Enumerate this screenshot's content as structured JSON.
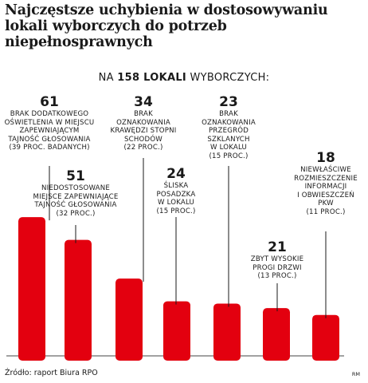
{
  "title": "Najczęstsze uchybienia w dostosowywaniu lokali wyborczych do potrzeb niepełnosprawnych",
  "subtitle": {
    "prefix": "NA",
    "count": "158 LOKALI",
    "suffix": "WYBORCZYCH:"
  },
  "source": "Źródło: raport Biura RPO",
  "credit": "RM",
  "colors": {
    "bar": "#e3000f",
    "text": "#1a1a1a",
    "axis": "#444444"
  },
  "chart_data": {
    "type": "bar",
    "title": "Najczęstsze uchybienia w dostosowywaniu lokali wyborczych do potrzeb niepełnosprawnych",
    "xlabel": "",
    "ylabel": "",
    "grid": false,
    "categories": [
      "Brak dodatkowego oświetlenia w miejscu zapewniającym tajność głosowania",
      "Niedostosowane miejsce zapewniające tajność głosowania",
      "Brak oznakowania krawędzi stopni schodów",
      "Śliska posadzka w lokalu",
      "Brak oznakowania przegród szklanych w lokalu",
      "Zbyt wysokie progi drzwi",
      "Niewłaściwe rozmieszczenie informacji i obwieszczeń PKW"
    ],
    "values": [
      61,
      51,
      34,
      24,
      23,
      21,
      18
    ],
    "ylim": [
      0,
      70
    ],
    "labels": [
      {
        "value": "61",
        "lines": [
          "BRAK DODATKOWEGO",
          "OŚWIETLENIA W MIEJSCU",
          "ZAPEWNIAJĄCYM",
          "TAJNOŚĆ GŁOSOWANIA",
          "(39 PROC. BADANYCH)"
        ]
      },
      {
        "value": "51",
        "lines": [
          "NIEDOSTOSOWANE",
          "MIEJSCE ZAPEWNIAJĄCE",
          "TAJNOŚĆ GŁOSOWANIA",
          "(32 PROC.)"
        ]
      },
      {
        "value": "34",
        "lines": [
          "BRAK",
          "OZNAKOWANIA",
          "KRAWĘDZI STOPNI",
          "SCHODÓW",
          "(22 PROC.)"
        ]
      },
      {
        "value": "24",
        "lines": [
          "ŚLISKA",
          "POSADZKA",
          "W LOKALU",
          "(15 PROC.)"
        ]
      },
      {
        "value": "23",
        "lines": [
          "BRAK",
          "OZNAKOWANIA",
          "PRZEGRÓD",
          "SZKLANYCH",
          "W LOKALU",
          "(15 PROC.)"
        ]
      },
      {
        "value": "21",
        "lines": [
          "ZBYT WYSOKIE",
          "PROGI DRZWI",
          "(13 PROC.)"
        ]
      },
      {
        "value": "18",
        "lines": [
          "NIEWŁAŚCIWE",
          "ROZMIESZCZENIE",
          "INFORMACJI",
          "I OBWIESZCZEŃ",
          "PKW",
          "(11 PROC.)"
        ]
      }
    ]
  }
}
